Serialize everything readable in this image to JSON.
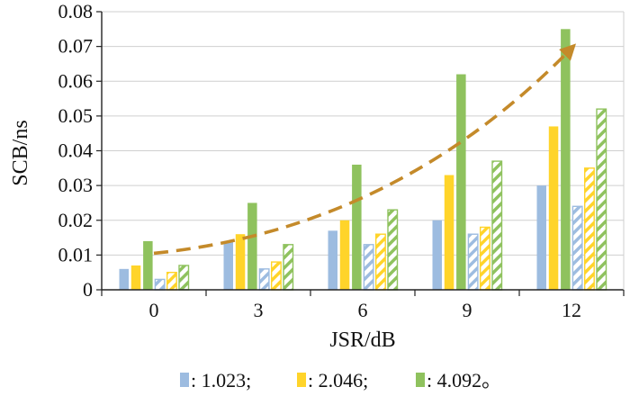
{
  "chart_data": {
    "type": "bar",
    "title": "",
    "xlabel": "JSR/dB",
    "ylabel": "SCB/ns",
    "categories": [
      "0",
      "3",
      "6",
      "9",
      "12"
    ],
    "ylim": [
      0,
      0.08
    ],
    "yticks": [
      "0",
      "0.01",
      "0.02",
      "0.03",
      "0.04",
      "0.05",
      "0.06",
      "0.07",
      "0.08"
    ],
    "series": [
      {
        "name": "1.023",
        "style": "solid",
        "color": "#9dbce0",
        "values": [
          0.006,
          0.014,
          0.017,
          0.02,
          0.03
        ]
      },
      {
        "name": "2.046",
        "style": "solid",
        "color": "#ffd42a",
        "values": [
          0.007,
          0.016,
          0.02,
          0.033,
          0.047
        ]
      },
      {
        "name": "4.092",
        "style": "solid",
        "color": "#8fc25e",
        "values": [
          0.014,
          0.025,
          0.036,
          0.062,
          0.075
        ]
      },
      {
        "name": "1.023",
        "style": "hatched",
        "color": "#9dbce0",
        "values": [
          0.003,
          0.006,
          0.013,
          0.016,
          0.024
        ]
      },
      {
        "name": "2.046",
        "style": "hatched",
        "color": "#ffd42a",
        "values": [
          0.005,
          0.008,
          0.016,
          0.018,
          0.035
        ]
      },
      {
        "name": "4.092",
        "style": "hatched",
        "color": "#8fc25e",
        "values": [
          0.007,
          0.013,
          0.023,
          0.037,
          0.052
        ]
      }
    ],
    "trend_arrow": {
      "color": "#c48a2a",
      "from": {
        "x": 0,
        "y": 0.0105
      },
      "to": {
        "x": 12,
        "y": 0.0695
      }
    },
    "legend": [
      {
        "color": "#9dbce0",
        "label": ": 1.023;"
      },
      {
        "color": "#ffd42a",
        "label": ": 2.046;"
      },
      {
        "color": "#8fc25e",
        "label": ": 4.092。"
      }
    ]
  }
}
